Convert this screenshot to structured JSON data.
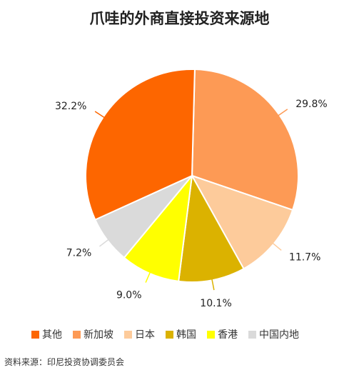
{
  "chart_data": {
    "type": "pie",
    "title": "爪哇的外商直接投资来源地",
    "slices": [
      {
        "label": "新加坡",
        "value": 29.8,
        "value_label": "29.8%",
        "color": "#fd9a55"
      },
      {
        "label": "日本",
        "value": 11.7,
        "value_label": "11.7%",
        "color": "#fdcb9b"
      },
      {
        "label": "韩国",
        "value": 10.1,
        "value_label": "10.1%",
        "color": "#dbb200"
      },
      {
        "label": "香港",
        "value": 9.0,
        "value_label": "9.0%",
        "color": "#ffff00"
      },
      {
        "label": "中国内地",
        "value": 7.2,
        "value_label": "7.2%",
        "color": "#dadada"
      },
      {
        "label": "其他",
        "value": 32.2,
        "value_label": "32.2%",
        "color": "#fd6600"
      }
    ],
    "legend_order": [
      "其他",
      "新加坡",
      "日本",
      "韩国",
      "香港",
      "中国内地"
    ],
    "legend_position": "bottom",
    "source": "资料来源：印尼投资协调委员会"
  }
}
